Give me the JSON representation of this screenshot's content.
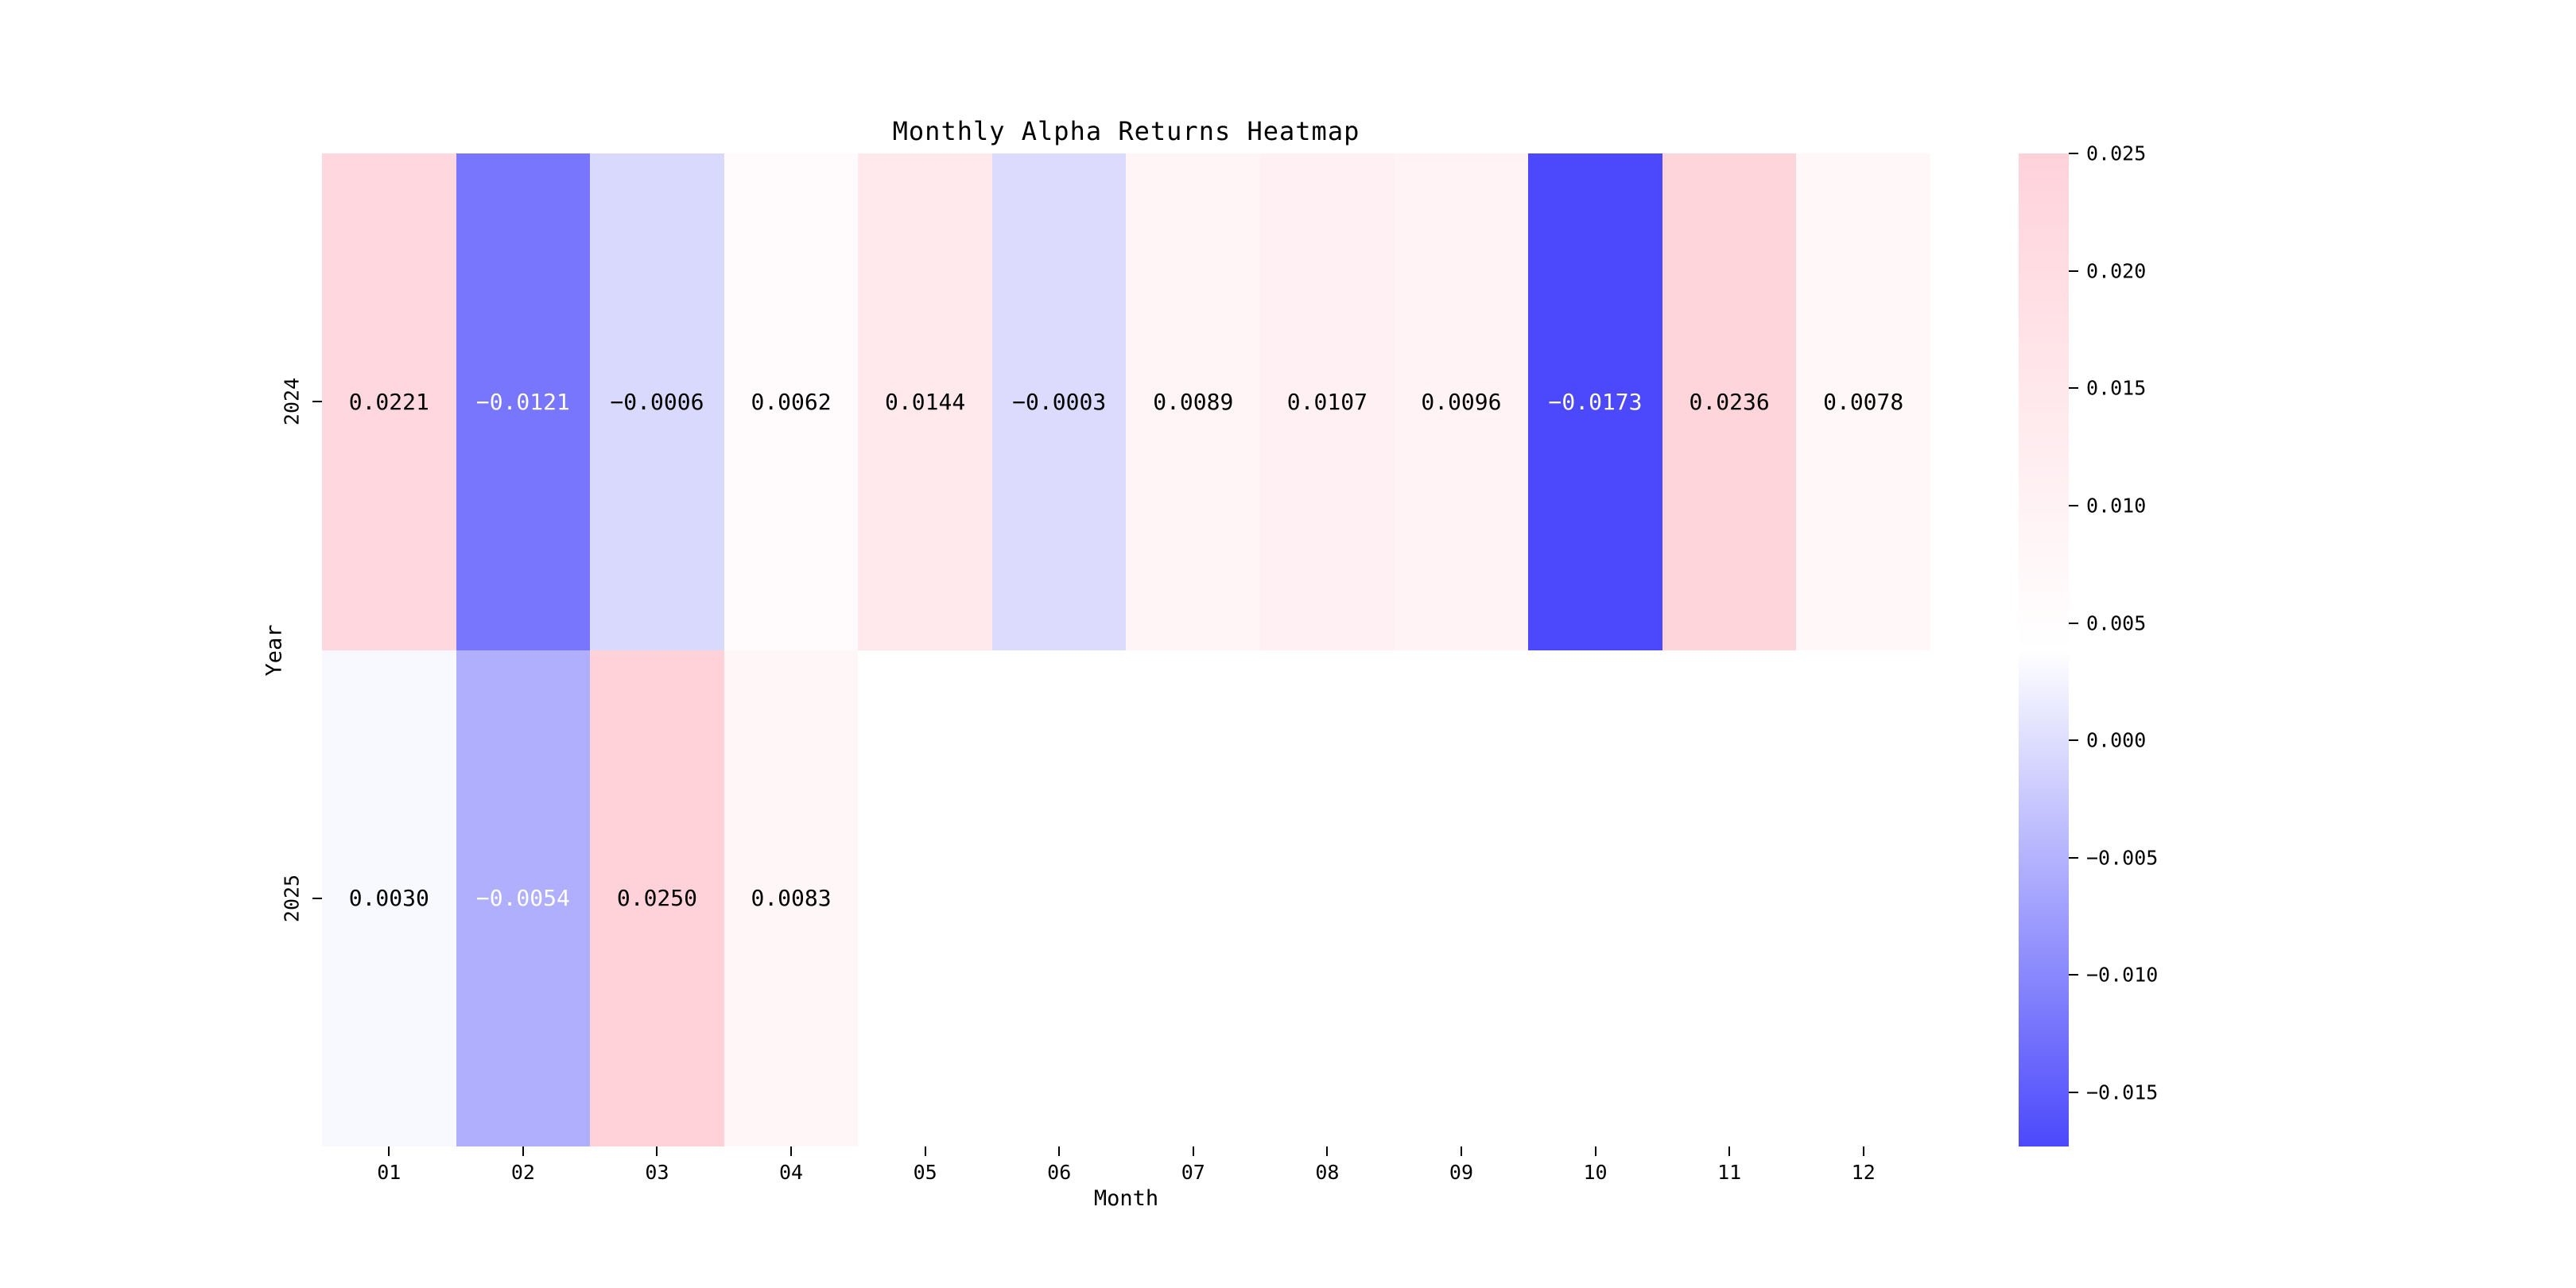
{
  "chart_data": {
    "type": "heatmap",
    "title": "Monthly Alpha Returns Heatmap",
    "xlabel": "Month",
    "ylabel": "Year",
    "x_categories": [
      "01",
      "02",
      "03",
      "04",
      "05",
      "06",
      "07",
      "08",
      "09",
      "10",
      "11",
      "12"
    ],
    "y_categories": [
      "2024",
      "2025"
    ],
    "series": [
      {
        "name": "2024",
        "values": [
          0.0221,
          -0.0121,
          -0.0006,
          0.0062,
          0.0144,
          -0.0003,
          0.0089,
          0.0107,
          0.0096,
          -0.0173,
          0.0236,
          0.0078
        ]
      },
      {
        "name": "2025",
        "values": [
          0.003,
          -0.0054,
          0.025,
          0.0083,
          null,
          null,
          null,
          null,
          null,
          null,
          null,
          null
        ]
      }
    ],
    "annotation_decimals": 4,
    "vmin": -0.0173,
    "vmax": 0.025,
    "colorbar": {
      "tick_labels": [
        "0.025",
        "0.020",
        "0.015",
        "0.010",
        "0.005",
        "0.000",
        "−0.005",
        "−0.010",
        "−0.015"
      ],
      "tick_values": [
        0.025,
        0.02,
        0.015,
        0.01,
        0.005,
        0.0,
        -0.005,
        -0.01,
        -0.015
      ],
      "position": "right"
    },
    "colors": {
      "negative_end": "#4b49fb",
      "midpoint": "#ffffff",
      "positive_end": "#ffd2da",
      "missing_cell": "#ffffff",
      "annotation_dark_text": "#000000",
      "annotation_light_text": "#ffffff",
      "tick_color": "#000000"
    },
    "grid": false,
    "legend_position": "none"
  }
}
